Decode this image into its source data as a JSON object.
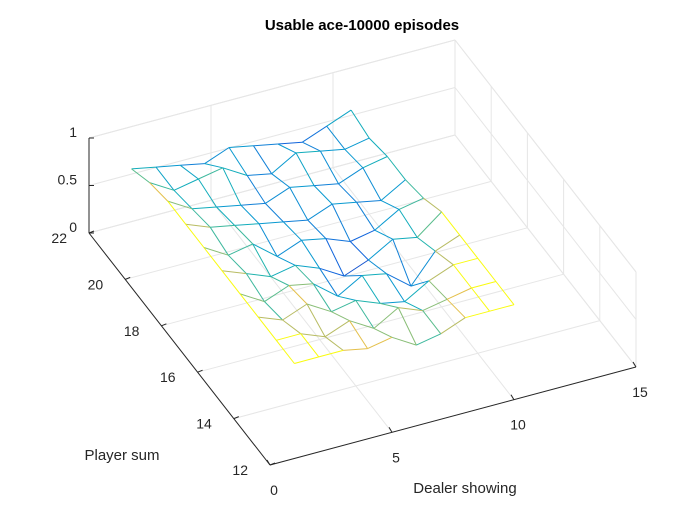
{
  "chart_data": {
    "type": "surface",
    "title": "Usable ace-10000 episodes",
    "xlabel": "Dealer showing",
    "ylabel": "Player sum",
    "zlabel": "",
    "xlim": [
      0,
      15
    ],
    "ylim": [
      12,
      22
    ],
    "zlim": [
      0,
      1
    ],
    "x_ticks": [
      "0",
      "5",
      "10",
      "15"
    ],
    "y_ticks": [
      "12",
      "14",
      "16",
      "18",
      "20",
      "22"
    ],
    "z_ticks": [
      "0",
      "0.5",
      "1"
    ],
    "x": [
      1,
      2,
      3,
      4,
      5,
      6,
      7,
      8,
      9,
      10
    ],
    "y": [
      12,
      13,
      14,
      15,
      16,
      17,
      18,
      19,
      20,
      21
    ],
    "z": [
      [
        1.0,
        1.0,
        1.0,
        0.95,
        1.0,
        0.85,
        0.9,
        1.0,
        1.0,
        1.0
      ],
      [
        1.0,
        1.0,
        0.9,
        1.0,
        0.85,
        1.0,
        0.9,
        0.95,
        1.0,
        1.0
      ],
      [
        1.0,
        0.9,
        1.0,
        0.85,
        0.9,
        0.8,
        0.75,
        0.9,
        1.0,
        1.0
      ],
      [
        1.0,
        0.85,
        0.95,
        0.9,
        0.7,
        0.85,
        0.8,
        0.6,
        0.9,
        1.0
      ],
      [
        1.0,
        0.9,
        0.8,
        0.85,
        0.75,
        0.6,
        0.7,
        0.85,
        0.8,
        1.0
      ],
      [
        1.0,
        0.85,
        0.9,
        0.7,
        0.8,
        0.75,
        0.65,
        0.7,
        0.85,
        0.9
      ],
      [
        1.0,
        0.9,
        0.85,
        0.8,
        0.75,
        0.7,
        0.8,
        0.75,
        0.7,
        0.85
      ],
      [
        1.0,
        0.85,
        0.8,
        0.75,
        0.7,
        0.8,
        0.75,
        0.7,
        0.8,
        0.85
      ],
      [
        0.95,
        0.8,
        0.85,
        0.9,
        0.75,
        0.7,
        0.85,
        0.8,
        0.75,
        0.8
      ],
      [
        0.85,
        0.8,
        0.75,
        0.7,
        0.8,
        0.75,
        0.7,
        0.65,
        0.75,
        0.85
      ]
    ],
    "colormap": "parula",
    "grid": true,
    "box": true
  }
}
